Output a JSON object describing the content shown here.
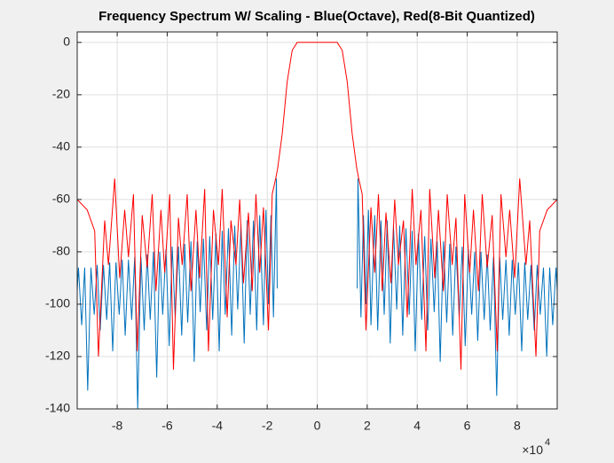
{
  "chart_data": {
    "type": "line",
    "title": "Frequency Spectrum W/ Scaling - Blue(Octave), Red(8-Bit Quantized)",
    "x_multiplier": {
      "base": "×10",
      "exponent": "4"
    },
    "xlim": [
      -9.6,
      9.6
    ],
    "ylim": [
      -140,
      4
    ],
    "xticks": [
      -8,
      -6,
      -4,
      -2,
      0,
      2,
      4,
      6,
      8
    ],
    "yticks": [
      -140,
      -120,
      -100,
      -80,
      -60,
      -40,
      -20,
      0
    ],
    "grid": true,
    "series": [
      {
        "color": "#0072bd",
        "x": [
          -9.6,
          -9.55,
          -9.42,
          -9.3,
          -9.18,
          -9.05,
          -8.92,
          -8.8,
          -8.68,
          -8.55,
          -8.42,
          -8.3,
          -8.18,
          -8.05,
          -7.92,
          -7.8,
          -7.68,
          -7.55,
          -7.42,
          -7.3,
          -7.18,
          -7.05,
          -6.92,
          -6.8,
          -6.68,
          -6.55,
          -6.42,
          -6.3,
          -6.18,
          -6.05,
          -5.92,
          -5.8,
          -5.68,
          -5.55,
          -5.42,
          -5.3,
          -5.18,
          -5.05,
          -4.92,
          -4.8,
          -4.68,
          -4.55,
          -4.42,
          -4.3,
          -4.18,
          -4.05,
          -3.92,
          -3.8,
          -3.68,
          -3.55,
          -3.42,
          -3.3,
          -3.18,
          -3.05,
          -2.92,
          -2.8,
          -2.68,
          -2.55,
          -2.42,
          -2.3,
          -2.15,
          -2.05,
          -1.95,
          -1.85,
          -1.75,
          -1.63,
          -1.6,
          0,
          1.6,
          1.63,
          1.75,
          1.85,
          1.95,
          2.05,
          2.15,
          2.3,
          2.42,
          2.55,
          2.68,
          2.8,
          2.92,
          3.05,
          3.18,
          3.3,
          3.42,
          3.55,
          3.68,
          3.8,
          3.92,
          4.05,
          4.18,
          4.3,
          4.42,
          4.55,
          4.68,
          4.8,
          4.92,
          5.05,
          5.18,
          5.3,
          5.42,
          5.55,
          5.68,
          5.8,
          5.92,
          6.05,
          6.18,
          6.3,
          6.42,
          6.55,
          6.68,
          6.8,
          6.92,
          7.05,
          7.18,
          7.3,
          7.42,
          7.55,
          7.68,
          7.8,
          7.92,
          8.05,
          8.18,
          8.3,
          8.42,
          8.55,
          8.68,
          8.8,
          8.92,
          9.05,
          9.18,
          9.3,
          9.42,
          9.55,
          9.6
        ],
        "values": [
          -95,
          -86,
          -108,
          -86,
          -133,
          -86,
          -104,
          -85,
          -110,
          -85,
          -106,
          -84,
          -118,
          -84,
          -104,
          -83,
          -112,
          -83,
          -106,
          -82,
          -140,
          -82,
          -110,
          -81,
          -106,
          -80,
          -128,
          -80,
          -104,
          -79,
          -116,
          -78,
          -105,
          -78,
          -112,
          -77,
          -107,
          -76,
          -122,
          -76,
          -103,
          -75,
          -110,
          -74,
          -106,
          -73,
          -118,
          -72,
          -104,
          -71,
          -112,
          -70,
          -102,
          -70,
          -115,
          -68,
          -104,
          -68,
          -110,
          -66,
          -108,
          -64,
          -100,
          -66,
          -105,
          -52,
          -94,
          null,
          -94,
          -52,
          -105,
          -66,
          -100,
          -64,
          -108,
          -66,
          -110,
          -68,
          -104,
          -68,
          -115,
          -70,
          -102,
          -70,
          -112,
          -71,
          -104,
          -72,
          -118,
          -73,
          -106,
          -74,
          -110,
          -75,
          -103,
          -76,
          -122,
          -76,
          -107,
          -77,
          -112,
          -78,
          -105,
          -78,
          -116,
          -79,
          -104,
          -80,
          -114,
          -80,
          -106,
          -81,
          -110,
          -82,
          -135,
          -82,
          -106,
          -83,
          -112,
          -83,
          -104,
          -84,
          -118,
          -84,
          -106,
          -85,
          -110,
          -85,
          -104,
          -86,
          -120,
          -86,
          -108,
          -86,
          -95
        ]
      },
      {
        "color": "#ff0000",
        "x": [
          -9.6,
          -9.2,
          -8.9,
          -8.75,
          -8.5,
          -8.35,
          -8.1,
          -7.9,
          -7.7,
          -7.55,
          -7.35,
          -7.2,
          -7.0,
          -6.8,
          -6.6,
          -6.45,
          -6.25,
          -6.1,
          -5.9,
          -5.75,
          -5.55,
          -5.4,
          -5.2,
          -5.05,
          -4.85,
          -4.7,
          -4.5,
          -4.35,
          -4.15,
          -3.95,
          -3.8,
          -3.6,
          -3.45,
          -3.25,
          -3.1,
          -2.95,
          -2.75,
          -2.6,
          -2.45,
          -2.3,
          -2.15,
          -1.95,
          -1.8,
          -1.66,
          -1.58,
          -1.4,
          -1.2,
          -1.0,
          -0.8,
          0.8,
          1.0,
          1.2,
          1.4,
          1.58,
          1.66,
          1.8,
          1.95,
          2.15,
          2.3,
          2.45,
          2.6,
          2.75,
          2.95,
          3.1,
          3.25,
          3.45,
          3.6,
          3.8,
          3.95,
          4.15,
          4.35,
          4.5,
          4.7,
          4.85,
          5.05,
          5.2,
          5.4,
          5.55,
          5.75,
          5.9,
          6.1,
          6.25,
          6.45,
          6.6,
          6.8,
          7.0,
          7.2,
          7.35,
          7.55,
          7.7,
          7.9,
          8.1,
          8.35,
          8.5,
          8.75,
          8.9,
          9.2,
          9.6
        ],
        "values": [
          -60,
          -64,
          -72,
          -120,
          -68,
          -85,
          -52,
          -90,
          -64,
          -82,
          -58,
          -118,
          -66,
          -86,
          -58,
          -95,
          -64,
          -88,
          -58,
          -125,
          -67,
          -85,
          -58,
          -95,
          -64,
          -90,
          -56,
          -118,
          -64,
          -85,
          -56,
          -105,
          -68,
          -85,
          -60,
          -92,
          -65,
          -95,
          -58,
          -88,
          -63,
          -110,
          -58,
          -52,
          -48,
          -35,
          -15,
          -3,
          0,
          0,
          -3,
          -15,
          -35,
          -48,
          -52,
          -58,
          -110,
          -63,
          -88,
          -58,
          -95,
          -65,
          -92,
          -60,
          -85,
          -68,
          -105,
          -56,
          -85,
          -64,
          -118,
          -56,
          -90,
          -64,
          -95,
          -58,
          -85,
          -67,
          -125,
          -58,
          -88,
          -64,
          -95,
          -58,
          -86,
          -66,
          -118,
          -58,
          -82,
          -64,
          -90,
          -52,
          -85,
          -68,
          -120,
          -72,
          -64,
          -60
        ]
      }
    ]
  }
}
